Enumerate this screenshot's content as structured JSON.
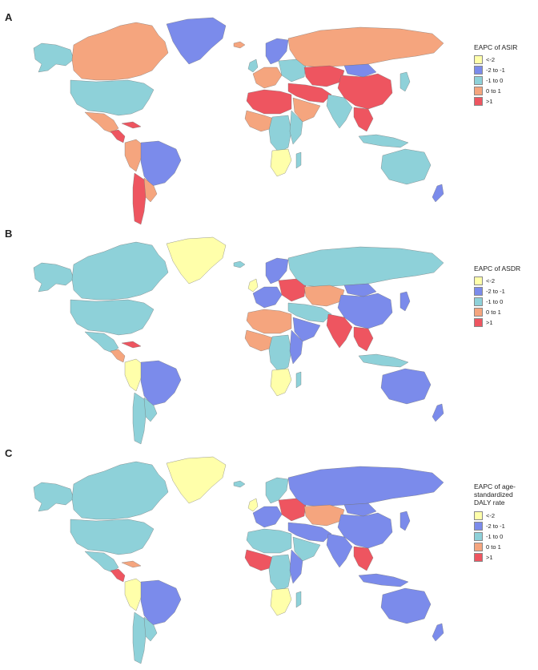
{
  "colors": {
    "c1": "#FFFFAA",
    "c2": "#7B8BEB",
    "c3": "#8ED1D9",
    "c4": "#F5A57E",
    "c5": "#EE5560",
    "ocean": "#FFFFFF"
  },
  "legend_items": [
    {
      "key": "c1",
      "label": "<-2"
    },
    {
      "key": "c2",
      "label": "-2 to -1"
    },
    {
      "key": "c3",
      "label": "-1 to 0"
    },
    {
      "key": "c4",
      "label": "0 to 1"
    },
    {
      "key": "c5",
      "label": ">1"
    }
  ],
  "panels": [
    {
      "label": "A",
      "legend_title": "EAPC of ASIR",
      "regions": {
        "greenland": "c2",
        "canada": "c4",
        "alaska": "c3",
        "usa": "c3",
        "mexico": "c4",
        "central_am": "c5",
        "caribbean": "c5",
        "brazil": "c2",
        "andes_n": "c4",
        "chile_arg": "c5",
        "south_am_s": "c4",
        "west_eu": "c4",
        "scandinavia": "c2",
        "east_eu": "c3",
        "n_africa": "c5",
        "w_africa": "c4",
        "c_africa": "c3",
        "e_africa": "c3",
        "s_africa": "c1",
        "madagascar": "c3",
        "middle_east": "c5",
        "arabia": "c4",
        "russia": "c4",
        "central_asia": "c5",
        "china": "c5",
        "mongolia": "c2",
        "india": "c3",
        "se_asia": "c5",
        "japan": "c3",
        "indonesia": "c3",
        "australia": "c3",
        "nz": "c2",
        "iceland": "c4",
        "uk": "c3"
      }
    },
    {
      "label": "B",
      "legend_title": "EAPC of ASDR",
      "regions": {
        "greenland": "c1",
        "canada": "c3",
        "alaska": "c3",
        "usa": "c3",
        "mexico": "c3",
        "central_am": "c4",
        "caribbean": "c5",
        "brazil": "c2",
        "andes_n": "c1",
        "chile_arg": "c3",
        "south_am_s": "c3",
        "west_eu": "c2",
        "scandinavia": "c2",
        "east_eu": "c5",
        "n_africa": "c4",
        "w_africa": "c4",
        "c_africa": "c3",
        "e_africa": "c2",
        "s_africa": "c1",
        "madagascar": "c3",
        "middle_east": "c3",
        "arabia": "c2",
        "russia": "c3",
        "central_asia": "c4",
        "china": "c2",
        "mongolia": "c2",
        "india": "c5",
        "se_asia": "c5",
        "japan": "c2",
        "indonesia": "c3",
        "australia": "c2",
        "nz": "c2",
        "iceland": "c3",
        "uk": "c1"
      }
    },
    {
      "label": "C",
      "legend_title": "EAPC of age-standardized\nDALY rate",
      "regions": {
        "greenland": "c1",
        "canada": "c3",
        "alaska": "c3",
        "usa": "c3",
        "mexico": "c3",
        "central_am": "c5",
        "caribbean": "c4",
        "brazil": "c2",
        "andes_n": "c1",
        "chile_arg": "c3",
        "south_am_s": "c3",
        "west_eu": "c2",
        "scandinavia": "c3",
        "east_eu": "c5",
        "n_africa": "c3",
        "w_africa": "c5",
        "c_africa": "c3",
        "e_africa": "c2",
        "s_africa": "c1",
        "madagascar": "c3",
        "middle_east": "c2",
        "arabia": "c3",
        "russia": "c2",
        "central_asia": "c4",
        "china": "c2",
        "mongolia": "c2",
        "india": "c2",
        "se_asia": "c5",
        "japan": "c2",
        "indonesia": "c2",
        "australia": "c2",
        "nz": "c2",
        "iceland": "c3",
        "uk": "c1"
      }
    }
  ]
}
